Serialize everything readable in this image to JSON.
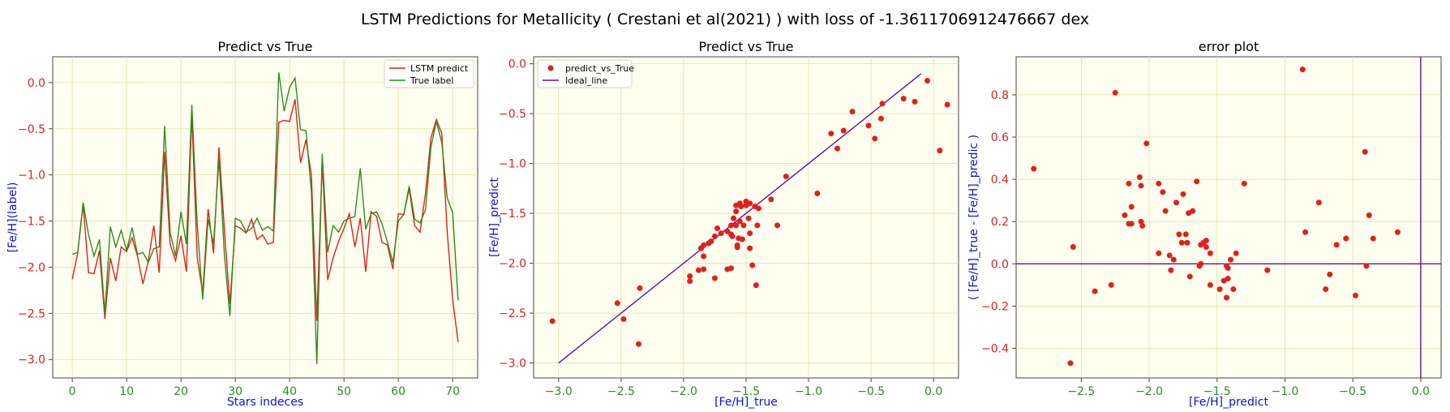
{
  "suptitle": "LSTM Predictions for Metallicity ( Crestani et al(2021) ) with loss of -1.3611706912476667 dex",
  "colors": {
    "background": "#fffff0",
    "grid": "#e8dca8",
    "predict": "#e02020",
    "true": "#2e8b22",
    "ideal": "#6a0f8e",
    "label": "#1010e0"
  },
  "chart_data": [
    {
      "type": "line",
      "title": "Predict vs True",
      "xlabel": "Stars indeces",
      "ylabel": "[Fe/H](label)",
      "xlim": [
        -3.6,
        74.6
      ],
      "ylim": [
        -3.2,
        0.28
      ],
      "xticks": [
        0,
        10,
        20,
        30,
        40,
        50,
        60,
        70
      ],
      "yticks": [
        -3.0,
        -2.5,
        -2.0,
        -1.5,
        -1.0,
        -0.5,
        0.0
      ],
      "ytick_labels": [
        "−3.0",
        "−2.5",
        "−2.0",
        "−1.5",
        "−1.0",
        "−0.5",
        "0.0"
      ],
      "grid": true,
      "legend": "top-right",
      "series": [
        {
          "name": "LSTM predict",
          "color": "#e02020",
          "values": [
            -2.13,
            -1.85,
            -1.32,
            -2.06,
            -2.07,
            -1.82,
            -2.56,
            -1.9,
            -2.15,
            -1.78,
            -1.83,
            -1.68,
            -1.88,
            -2.18,
            -1.93,
            -1.55,
            -2.06,
            -0.75,
            -1.75,
            -1.93,
            -1.66,
            -2.05,
            -0.35,
            -1.9,
            -2.28,
            -1.37,
            -1.85,
            -0.7,
            -1.6,
            -2.4,
            -1.55,
            -1.58,
            -1.63,
            -1.48,
            -1.7,
            -1.65,
            -1.75,
            -1.73,
            -0.43,
            -0.41,
            -0.42,
            -0.18,
            -0.87,
            -0.62,
            -1.0,
            -2.58,
            -0.85,
            -2.14,
            -1.9,
            -1.72,
            -1.58,
            -1.42,
            -1.78,
            -1.47,
            -2.05,
            -1.4,
            -1.45,
            -1.73,
            -1.76,
            -2.02,
            -1.42,
            -1.43,
            -1.15,
            -1.55,
            -1.62,
            -1.2,
            -0.6,
            -0.4,
            -0.55,
            -1.62,
            -2.35,
            -2.81
          ]
        },
        {
          "name": "True label",
          "color": "#2e8b22",
          "values": [
            -1.86,
            -1.84,
            -1.3,
            -1.65,
            -1.88,
            -1.7,
            -2.5,
            -1.56,
            -1.78,
            -1.6,
            -1.82,
            -1.57,
            -1.86,
            -1.84,
            -1.95,
            -1.8,
            -1.78,
            -0.47,
            -1.62,
            -1.88,
            -1.4,
            -1.75,
            -0.24,
            -1.54,
            -2.35,
            -1.48,
            -1.75,
            -0.82,
            -1.87,
            -2.53,
            -1.47,
            -1.5,
            -1.62,
            -1.58,
            -1.47,
            -1.6,
            -1.56,
            -1.61,
            0.11,
            -0.31,
            -0.05,
            0.05,
            -0.51,
            -0.52,
            -1.18,
            -3.05,
            -0.77,
            -1.84,
            -1.55,
            -1.62,
            -1.5,
            -1.47,
            -1.45,
            -0.93,
            -1.59,
            -1.42,
            -1.4,
            -1.53,
            -1.73,
            -1.95,
            -1.5,
            -1.43,
            -1.12,
            -1.48,
            -1.52,
            -1.38,
            -0.7,
            -0.42,
            -0.65,
            -1.25,
            -1.41,
            -2.36
          ]
        }
      ]
    },
    {
      "type": "scatter",
      "title": "Predict vs True",
      "xlabel": "[Fe/H]_true",
      "ylabel": "[Fe/H]_predict",
      "xlim": [
        -3.2,
        0.2
      ],
      "ylim": [
        -3.15,
        0.07
      ],
      "xticks": [
        -3.0,
        -2.5,
        -2.0,
        -1.5,
        -1.0,
        -0.5,
        0.0
      ],
      "xtick_labels": [
        "−3.0",
        "−2.5",
        "−2.0",
        "−1.5",
        "−1.0",
        "−0.5",
        "0.0"
      ],
      "yticks": [
        -3.0,
        -2.5,
        -2.0,
        -1.5,
        -1.0,
        -0.5,
        0.0
      ],
      "ytick_labels": [
        "−3.0",
        "−2.5",
        "−2.0",
        "−1.5",
        "−1.0",
        "−0.5",
        "0.0"
      ],
      "grid": true,
      "legend": "top-left",
      "scatter_name": "predict_vs_True",
      "line_name": "Ideal_line",
      "ideal_line": [
        [
          -3.0,
          -3.0
        ],
        [
          -0.1,
          -0.1
        ]
      ],
      "points": [
        [
          -3.05,
          -2.58
        ],
        [
          -2.53,
          -2.4
        ],
        [
          -2.48,
          -2.56
        ],
        [
          -2.36,
          -2.81
        ],
        [
          -2.35,
          -2.25
        ],
        [
          -1.95,
          -2.13
        ],
        [
          -1.95,
          -2.18
        ],
        [
          -1.88,
          -2.07
        ],
        [
          -1.86,
          -1.85
        ],
        [
          -1.84,
          -1.93
        ],
        [
          -1.86,
          -1.85
        ],
        [
          -1.84,
          -2.06
        ],
        [
          -1.8,
          -1.8
        ],
        [
          -1.78,
          -1.78
        ],
        [
          -1.75,
          -2.15
        ],
        [
          -1.73,
          -1.65
        ],
        [
          -1.65,
          -2.06
        ],
        [
          -1.62,
          -1.62
        ],
        [
          -1.62,
          -1.71
        ],
        [
          -1.61,
          -1.73
        ],
        [
          -1.6,
          -1.55
        ],
        [
          -1.58,
          -1.48
        ],
        [
          -1.58,
          -1.42
        ],
        [
          -1.56,
          -1.75
        ],
        [
          -1.55,
          -1.58
        ],
        [
          -1.53,
          -1.76
        ],
        [
          -1.52,
          -1.62
        ],
        [
          -1.5,
          -1.42
        ],
        [
          -1.48,
          -1.55
        ],
        [
          -1.47,
          -1.7
        ],
        [
          -1.47,
          -1.4
        ],
        [
          -1.45,
          -2.02
        ],
        [
          -1.43,
          -1.43
        ],
        [
          -1.42,
          -2.22
        ],
        [
          -1.41,
          -1.62
        ],
        [
          -1.4,
          -1.45
        ],
        [
          -1.3,
          -1.36
        ],
        [
          -1.25,
          -1.62
        ],
        [
          -1.18,
          -1.13
        ],
        [
          -0.93,
          -1.3
        ],
        [
          -0.82,
          -0.7
        ],
        [
          -0.77,
          -0.85
        ],
        [
          -0.72,
          -0.67
        ],
        [
          -0.65,
          -0.48
        ],
        [
          -0.52,
          -0.62
        ],
        [
          -0.47,
          -0.75
        ],
        [
          -0.42,
          -0.55
        ],
        [
          -0.41,
          -0.4
        ],
        [
          -0.24,
          -0.35
        ],
        [
          -0.15,
          -0.38
        ],
        [
          -0.05,
          -0.17
        ],
        [
          0.05,
          -0.87
        ],
        [
          0.11,
          -0.41
        ],
        [
          -1.7,
          -1.7
        ],
        [
          -1.57,
          -1.82
        ],
        [
          -1.57,
          -1.84
        ],
        [
          -1.54,
          -1.43
        ],
        [
          -1.84,
          -1.82
        ],
        [
          -1.47,
          -1.85
        ],
        [
          -1.55,
          -1.4
        ],
        [
          -1.5,
          -1.38
        ],
        [
          -1.62,
          -2.05
        ],
        [
          -1.75,
          -1.73
        ],
        [
          -1.65,
          -1.68
        ],
        [
          -1.58,
          -1.62
        ]
      ]
    },
    {
      "type": "scatter",
      "title": "error plot",
      "xlabel": "[Fe/H]_predict",
      "ylabel": "(  [Fe/H]_true - [Fe/H]_predic  )",
      "xlim": [
        -2.98,
        0.15
      ],
      "ylim": [
        -0.54,
        0.98
      ],
      "xticks": [
        -2.5,
        -2.0,
        -1.5,
        -1.0,
        -0.5,
        0.0
      ],
      "xtick_labels": [
        "−2.5",
        "−2.0",
        "−1.5",
        "−1.0",
        "−0.5",
        "0.0"
      ],
      "yticks": [
        -0.4,
        -0.2,
        0.0,
        0.2,
        0.4,
        0.6,
        0.8
      ],
      "ytick_labels": [
        "−0.4",
        "−0.2",
        "0.0",
        "0.2",
        "0.4",
        "0.6",
        "0.8"
      ],
      "grid": true,
      "hline": 0.0,
      "vline": 0.0,
      "points": [
        [
          -2.85,
          0.45
        ],
        [
          -2.58,
          -0.47
        ],
        [
          -2.56,
          0.08
        ],
        [
          -2.4,
          -0.13
        ],
        [
          -2.28,
          -0.1
        ],
        [
          -2.25,
          0.81
        ],
        [
          -2.18,
          0.23
        ],
        [
          -2.15,
          0.38
        ],
        [
          -2.15,
          0.19
        ],
        [
          -2.13,
          0.19
        ],
        [
          -2.13,
          0.27
        ],
        [
          -2.07,
          0.41
        ],
        [
          -2.06,
          0.2
        ],
        [
          -2.06,
          0.37
        ],
        [
          -2.05,
          0.18
        ],
        [
          -2.02,
          0.57
        ],
        [
          -1.93,
          0.05
        ],
        [
          -1.93,
          0.38
        ],
        [
          -1.9,
          0.34
        ],
        [
          -1.88,
          0.25
        ],
        [
          -1.85,
          0.04
        ],
        [
          -1.84,
          -0.03
        ],
        [
          -1.82,
          0.02
        ],
        [
          -1.8,
          0.29
        ],
        [
          -1.78,
          0.14
        ],
        [
          -1.76,
          0.1
        ],
        [
          -1.75,
          0.33
        ],
        [
          -1.73,
          0.14
        ],
        [
          -1.72,
          0.1
        ],
        [
          -1.71,
          0.24
        ],
        [
          -1.7,
          -0.06
        ],
        [
          -1.68,
          0.25
        ],
        [
          -1.65,
          0.39
        ],
        [
          -1.63,
          -0.01
        ],
        [
          -1.62,
          0.0
        ],
        [
          -1.62,
          0.09
        ],
        [
          -1.6,
          0.1
        ],
        [
          -1.58,
          0.08
        ],
        [
          -1.58,
          0.11
        ],
        [
          -1.55,
          0.05
        ],
        [
          -1.55,
          -0.1
        ],
        [
          -1.48,
          -0.12
        ],
        [
          -1.45,
          -0.08
        ],
        [
          -1.43,
          -0.01
        ],
        [
          -1.43,
          -0.16
        ],
        [
          -1.42,
          -0.02
        ],
        [
          -1.42,
          -0.07
        ],
        [
          -1.4,
          0.02
        ],
        [
          -1.38,
          -0.12
        ],
        [
          -1.36,
          0.05
        ],
        [
          -1.3,
          0.38
        ],
        [
          -1.13,
          -0.03
        ],
        [
          -0.87,
          0.92
        ],
        [
          -0.85,
          0.15
        ],
        [
          -0.75,
          0.29
        ],
        [
          -0.7,
          -0.12
        ],
        [
          -0.67,
          -0.05
        ],
        [
          -0.62,
          0.09
        ],
        [
          -0.55,
          0.12
        ],
        [
          -0.48,
          -0.15
        ],
        [
          -0.41,
          0.53
        ],
        [
          -0.4,
          -0.01
        ],
        [
          -0.38,
          0.23
        ],
        [
          -0.35,
          0.12
        ],
        [
          -0.17,
          0.15
        ]
      ]
    }
  ]
}
